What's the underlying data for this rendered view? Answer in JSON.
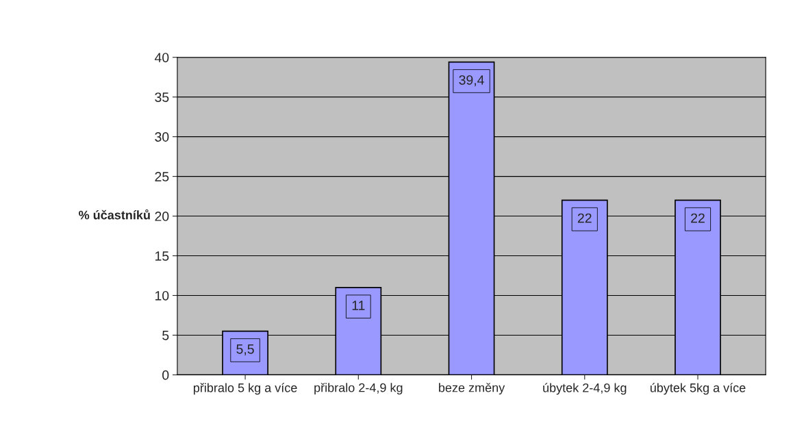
{
  "chart_data": {
    "type": "bar",
    "ylabel": "% účastníků",
    "categories": [
      "přibralo 5 kg a více",
      "přibralo 2-4,9 kg",
      "beze změny",
      "úbytek 2-4,9 kg",
      "úbytek 5kg a více"
    ],
    "values": [
      5.5,
      11,
      39.4,
      22,
      22
    ],
    "value_labels": [
      "5,5",
      "11",
      "39,4",
      "22",
      "22"
    ],
    "color": "#9999ff",
    "ylim": [
      0,
      40
    ],
    "yticks": [
      0,
      5,
      10,
      15,
      20,
      25,
      30,
      35,
      40
    ],
    "grid": "y"
  }
}
